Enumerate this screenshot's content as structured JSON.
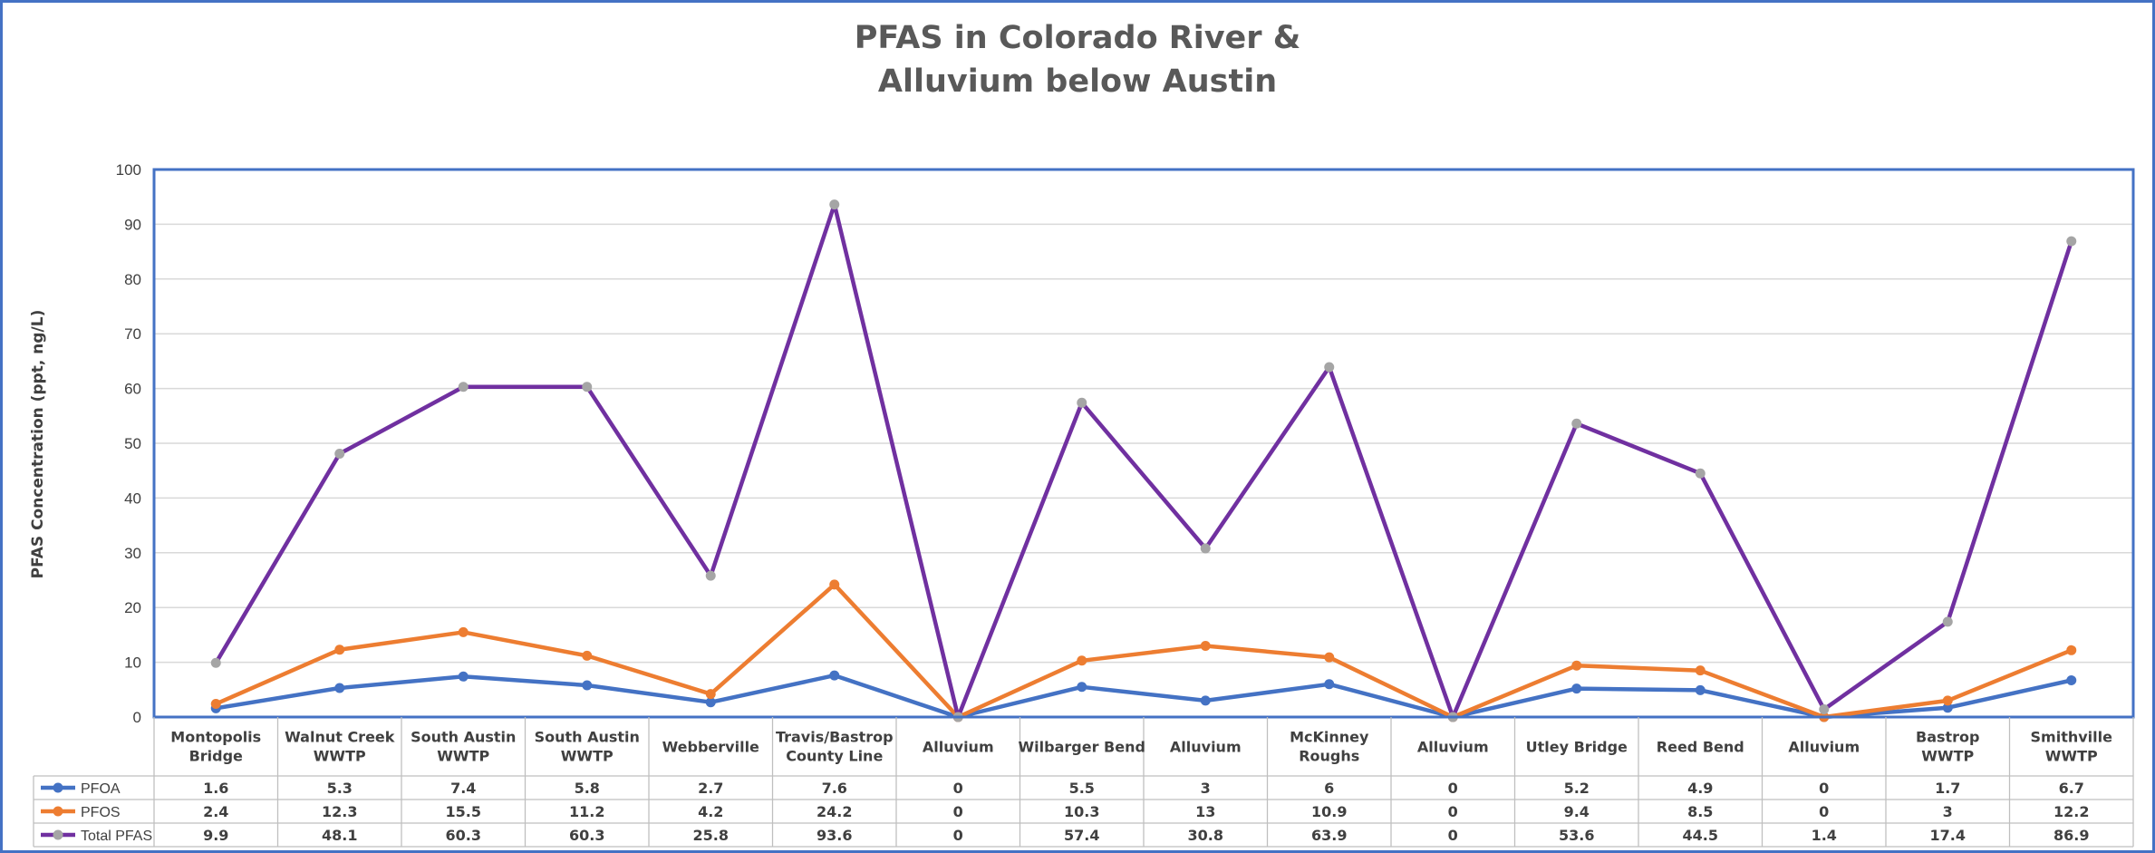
{
  "chart_data": {
    "type": "line",
    "title_lines": [
      "PFAS in Colorado River &",
      "Alluvium below Austin"
    ],
    "ylabel": "PFAS Concentration (ppt, ng/L)",
    "xlabel": "",
    "ylim": [
      0,
      100
    ],
    "y_ticks": [
      "0",
      "10",
      "20",
      "30",
      "40",
      "50",
      "60",
      "70",
      "80",
      "90",
      "100"
    ],
    "grid": true,
    "legend_placement": "data-table",
    "categories": [
      [
        "Montopolis",
        "Bridge"
      ],
      [
        "Walnut Creek",
        "WWTP"
      ],
      [
        "South Austin",
        "WWTP"
      ],
      [
        "South Austin",
        "WWTP"
      ],
      [
        "Webberville"
      ],
      [
        "Travis/Bastrop",
        "County Line"
      ],
      [
        "Alluvium"
      ],
      [
        "Wilbarger Bend"
      ],
      [
        "Alluvium"
      ],
      [
        "McKinney",
        "Roughs"
      ],
      [
        "Alluvium"
      ],
      [
        "Utley Bridge"
      ],
      [
        "Reed Bend"
      ],
      [
        "Alluvium"
      ],
      [
        "Bastrop",
        "WWTP"
      ],
      [
        "Smithville",
        "WWTP"
      ]
    ],
    "series": [
      {
        "name": "PFOA",
        "line_color": "#4472c4",
        "marker_color": "#4472c4",
        "values": [
          1.6,
          5.3,
          7.4,
          5.8,
          2.7,
          7.6,
          0,
          5.5,
          3,
          6,
          0,
          5.2,
          4.9,
          0,
          1.7,
          6.7
        ],
        "labels": [
          "1.6",
          "5.3",
          "7.4",
          "5.8",
          "2.7",
          "7.6",
          "0",
          "5.5",
          "3",
          "6",
          "0",
          "5.2",
          "4.9",
          "0",
          "1.7",
          "6.7"
        ]
      },
      {
        "name": "PFOS",
        "line_color": "#ed7d31",
        "marker_color": "#ed7d31",
        "values": [
          2.4,
          12.3,
          15.5,
          11.2,
          4.2,
          24.2,
          0,
          10.3,
          13,
          10.9,
          0,
          9.4,
          8.5,
          0,
          3,
          12.2
        ],
        "labels": [
          "2.4",
          "12.3",
          "15.5",
          "11.2",
          "4.2",
          "24.2",
          "0",
          "10.3",
          "13",
          "10.9",
          "0",
          "9.4",
          "8.5",
          "0",
          "3",
          "12.2"
        ]
      },
      {
        "name": "Total PFAS",
        "line_color": "#7030a0",
        "marker_color": "#a5a5a5",
        "values": [
          9.9,
          48.1,
          60.3,
          60.3,
          25.8,
          93.6,
          0,
          57.4,
          30.8,
          63.9,
          0,
          53.6,
          44.5,
          1.4,
          17.4,
          86.9
        ],
        "labels": [
          "9.9",
          "48.1",
          "60.3",
          "60.3",
          "25.8",
          "93.6",
          "0",
          "57.4",
          "30.8",
          "63.9",
          "0",
          "53.6",
          "44.5",
          "1.4",
          "17.4",
          "86.9"
        ]
      }
    ]
  }
}
